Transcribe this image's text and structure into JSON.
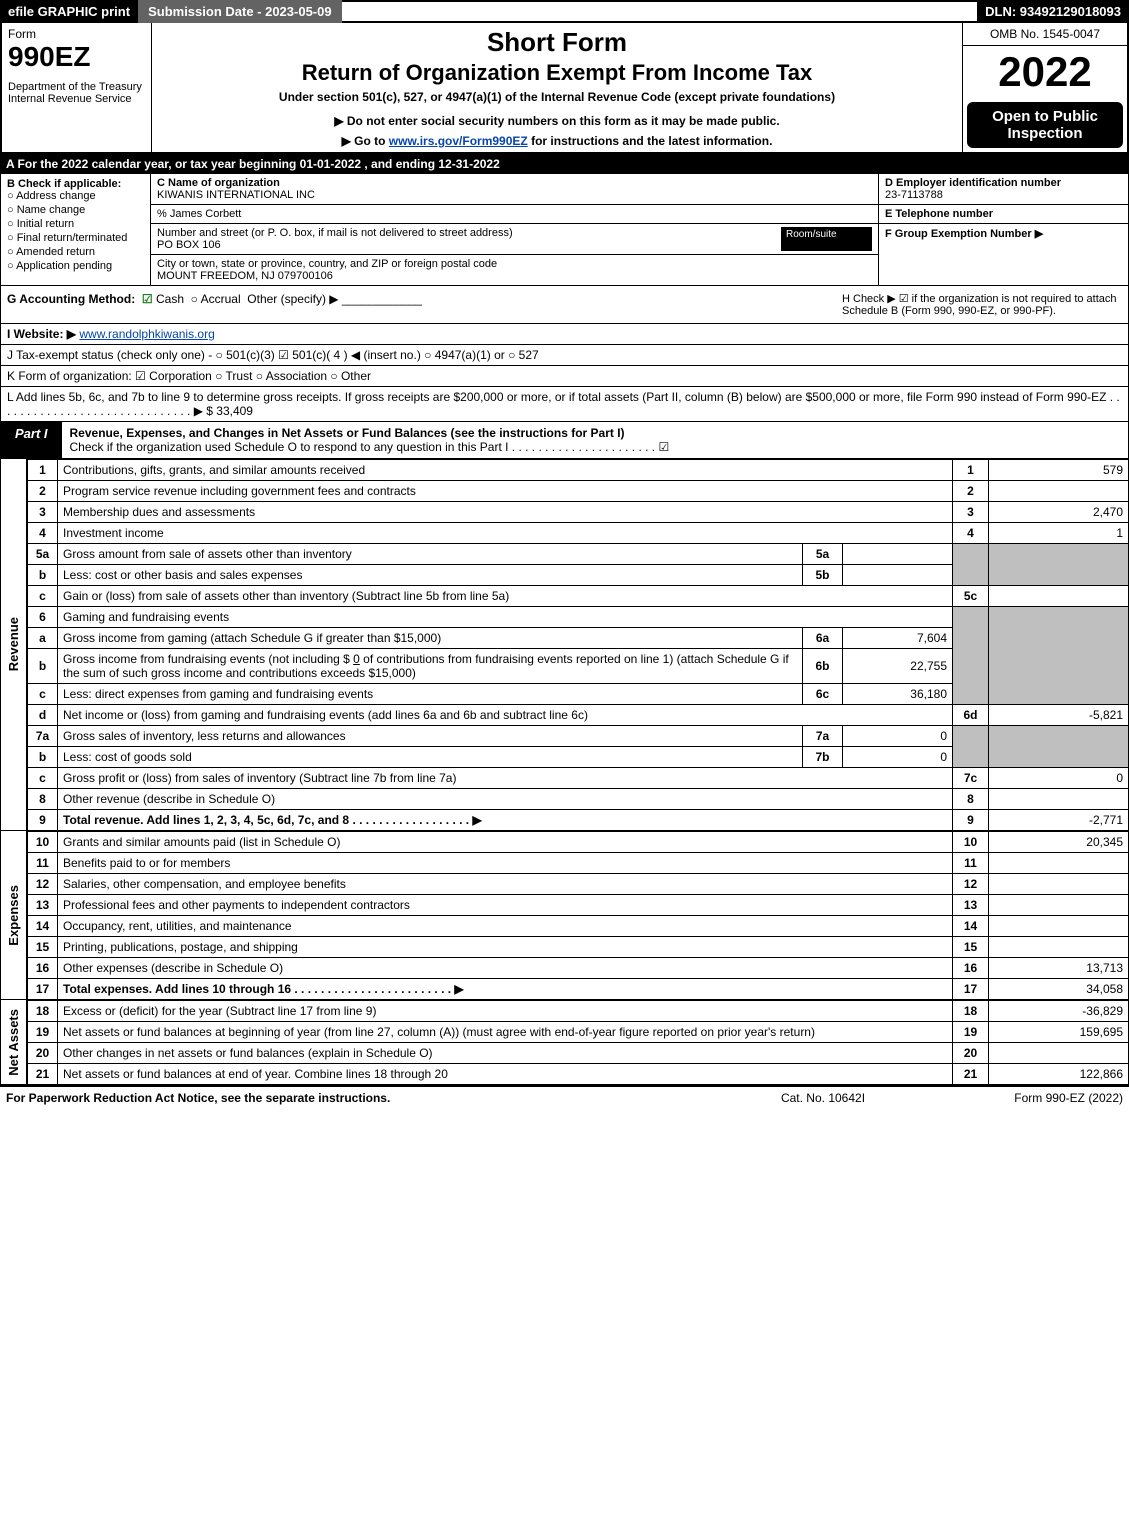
{
  "top": {
    "efile": "efile GRAPHIC print",
    "submission": "Submission Date - 2023-05-09",
    "dln": "DLN: 93492129018093"
  },
  "header": {
    "form_word": "Form",
    "form_number": "990EZ",
    "dept": "Department of the Treasury\nInternal Revenue Service",
    "title1": "Short Form",
    "title2": "Return of Organization Exempt From Income Tax",
    "sub1": "Under section 501(c), 527, or 4947(a)(1) of the Internal Revenue Code (except private foundations)",
    "sub2": "▶ Do not enter social security numbers on this form as it may be made public.",
    "sub3_pre": "▶ Go to ",
    "sub3_link": "www.irs.gov/Form990EZ",
    "sub3_post": " for instructions and the latest information.",
    "omb": "OMB No. 1545-0047",
    "year": "2022",
    "open_public": "Open to Public Inspection"
  },
  "rowA": "A  For the 2022 calendar year, or tax year beginning 01-01-2022 , and ending 12-31-2022",
  "B": {
    "title": "B  Check if applicable:",
    "items": [
      "Address change",
      "Name change",
      "Initial return",
      "Final return/terminated",
      "Amended return",
      "Application pending"
    ]
  },
  "C": {
    "name_lbl": "C Name of organization",
    "name": "KIWANIS INTERNATIONAL INC",
    "care_of": "% James Corbett",
    "addr_lbl": "Number and street (or P. O. box, if mail is not delivered to street address)",
    "room_lbl": "Room/suite",
    "addr": "PO BOX 106",
    "city_lbl": "City or town, state or province, country, and ZIP or foreign postal code",
    "city": "MOUNT FREEDOM, NJ  079700106"
  },
  "D": {
    "lbl": "D Employer identification number",
    "val": "23-7113788"
  },
  "E": {
    "lbl": "E Telephone number",
    "val": ""
  },
  "F": {
    "lbl": "F Group Exemption Number  ▶",
    "val": ""
  },
  "G": {
    "lbl": "G Accounting Method:",
    "cash": "Cash",
    "accrual": "Accrual",
    "other": "Other (specify) ▶"
  },
  "H": {
    "text": "H  Check ▶ ☑ if the organization is not required to attach Schedule B (Form 990, 990-EZ, or 990-PF)."
  },
  "I": {
    "lbl": "I Website: ▶",
    "link": "www.randolphkiwanis.org"
  },
  "J": {
    "text": "J Tax-exempt status (check only one) - ○ 501(c)(3)  ☑ 501(c)( 4 ) ◀ (insert no.)  ○ 4947(a)(1) or  ○ 527"
  },
  "K": {
    "text": "K Form of organization:  ☑ Corporation  ○ Trust  ○ Association  ○ Other"
  },
  "L": {
    "text": "L Add lines 5b, 6c, and 7b to line 9 to determine gross receipts. If gross receipts are $200,000 or more, or if total assets (Part II, column (B) below) are $500,000 or more, file Form 990 instead of Form 990-EZ  . . . . . . . . . . . . . . . . . . . . . . . . . . . . . . ▶ $ 33,409"
  },
  "partI": {
    "tab": "Part I",
    "title": "Revenue, Expenses, and Changes in Net Assets or Fund Balances (see the instructions for Part I)",
    "check_line": "Check if the organization used Schedule O to respond to any question in this Part I . . . . . . . . . . . . . . . . . . . . . . ☑"
  },
  "sections": {
    "revenue": "Revenue",
    "expenses": "Expenses",
    "netassets": "Net Assets"
  },
  "lines": {
    "1": {
      "desc": "Contributions, gifts, grants, and similar amounts received",
      "rnum": "1",
      "amt": "579"
    },
    "2": {
      "desc": "Program service revenue including government fees and contracts",
      "rnum": "2",
      "amt": ""
    },
    "3": {
      "desc": "Membership dues and assessments",
      "rnum": "3",
      "amt": "2,470"
    },
    "4": {
      "desc": "Investment income",
      "rnum": "4",
      "amt": "1"
    },
    "5a": {
      "desc": "Gross amount from sale of assets other than inventory",
      "sub": "5a",
      "subval": ""
    },
    "5b": {
      "desc": "Less: cost or other basis and sales expenses",
      "sub": "5b",
      "subval": ""
    },
    "5c": {
      "desc": "Gain or (loss) from sale of assets other than inventory (Subtract line 5b from line 5a)",
      "rnum": "5c",
      "amt": ""
    },
    "6": {
      "desc": "Gaming and fundraising events"
    },
    "6a": {
      "desc": "Gross income from gaming (attach Schedule G if greater than $15,000)",
      "sub": "6a",
      "subval": "7,604"
    },
    "6b": {
      "desc_pre": "Gross income from fundraising events (not including $ ",
      "desc_us": "0",
      "desc_post": " of contributions from fundraising events reported on line 1) (attach Schedule G if the sum of such gross income and contributions exceeds $15,000)",
      "sub": "6b",
      "subval": "22,755"
    },
    "6c": {
      "desc": "Less: direct expenses from gaming and fundraising events",
      "sub": "6c",
      "subval": "36,180"
    },
    "6d": {
      "desc": "Net income or (loss) from gaming and fundraising events (add lines 6a and 6b and subtract line 6c)",
      "rnum": "6d",
      "amt": "-5,821"
    },
    "7a": {
      "desc": "Gross sales of inventory, less returns and allowances",
      "sub": "7a",
      "subval": "0"
    },
    "7b": {
      "desc": "Less: cost of goods sold",
      "sub": "7b",
      "subval": "0"
    },
    "7c": {
      "desc": "Gross profit or (loss) from sales of inventory (Subtract line 7b from line 7a)",
      "rnum": "7c",
      "amt": "0"
    },
    "8": {
      "desc": "Other revenue (describe in Schedule O)",
      "rnum": "8",
      "amt": ""
    },
    "9": {
      "desc": "Total revenue. Add lines 1, 2, 3, 4, 5c, 6d, 7c, and 8  . . . . . . . . . . . . . . . . . . ▶",
      "rnum": "9",
      "amt": "-2,771"
    },
    "10": {
      "desc": "Grants and similar amounts paid (list in Schedule O)",
      "rnum": "10",
      "amt": "20,345"
    },
    "11": {
      "desc": "Benefits paid to or for members",
      "rnum": "11",
      "amt": ""
    },
    "12": {
      "desc": "Salaries, other compensation, and employee benefits",
      "rnum": "12",
      "amt": ""
    },
    "13": {
      "desc": "Professional fees and other payments to independent contractors",
      "rnum": "13",
      "amt": ""
    },
    "14": {
      "desc": "Occupancy, rent, utilities, and maintenance",
      "rnum": "14",
      "amt": ""
    },
    "15": {
      "desc": "Printing, publications, postage, and shipping",
      "rnum": "15",
      "amt": ""
    },
    "16": {
      "desc": "Other expenses (describe in Schedule O)",
      "rnum": "16",
      "amt": "13,713"
    },
    "17": {
      "desc": "Total expenses. Add lines 10 through 16  . . . . . . . . . . . . . . . . . . . . . . . . ▶",
      "rnum": "17",
      "amt": "34,058"
    },
    "18": {
      "desc": "Excess or (deficit) for the year (Subtract line 17 from line 9)",
      "rnum": "18",
      "amt": "-36,829"
    },
    "19": {
      "desc": "Net assets or fund balances at beginning of year (from line 27, column (A)) (must agree with end-of-year figure reported on prior year's return)",
      "rnum": "19",
      "amt": "159,695"
    },
    "20": {
      "desc": "Other changes in net assets or fund balances (explain in Schedule O)",
      "rnum": "20",
      "amt": ""
    },
    "21": {
      "desc": "Net assets or fund balances at end of year. Combine lines 18 through 20",
      "rnum": "21",
      "amt": "122,866"
    }
  },
  "footer": {
    "left": "For Paperwork Reduction Act Notice, see the separate instructions.",
    "mid": "Cat. No. 10642I",
    "right": "Form 990-EZ (2022)"
  }
}
